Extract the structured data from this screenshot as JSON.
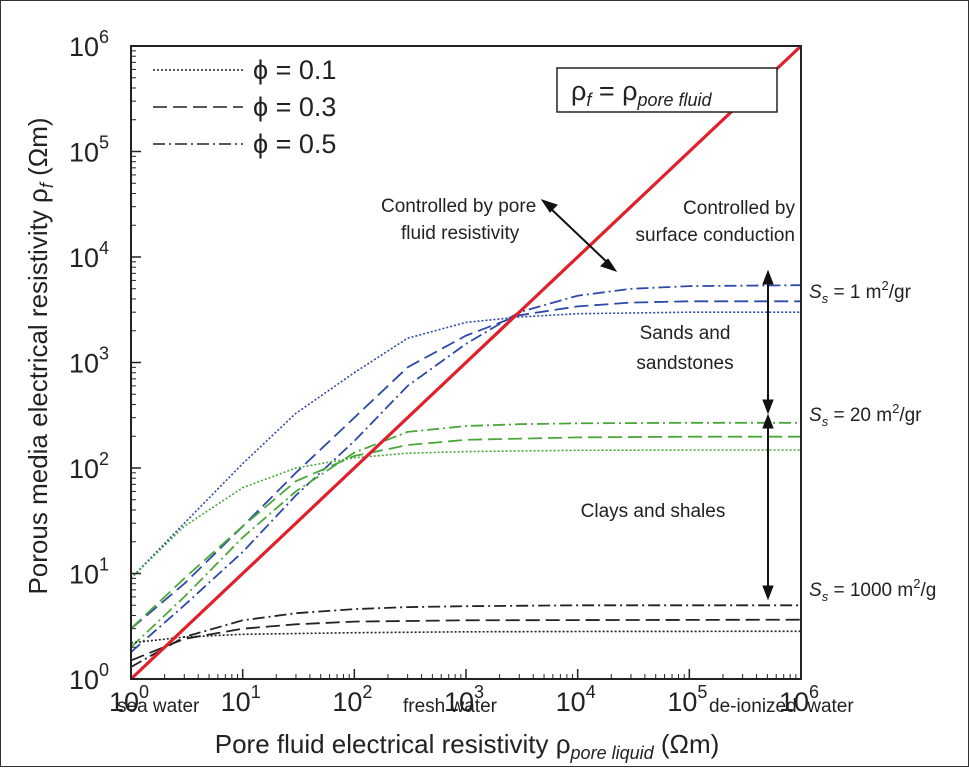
{
  "chart_data": {
    "type": "line",
    "x_scale": "log",
    "y_scale": "log",
    "xlim": [
      1,
      1000000
    ],
    "ylim": [
      1,
      1000000
    ],
    "grid": false,
    "xlabel": "Pore fluid electrical resistivity",
    "xlabel_symbol": "ρ",
    "xlabel_sub": "pore liquid",
    "xlabel_unit": "(Ωm)",
    "ylabel": "Porous media electrical resistivity",
    "ylabel_symbol": "ρ",
    "ylabel_sub": "f",
    "ylabel_unit": "(Ωm)",
    "tick_base": "10",
    "tick_exponents": [
      "0",
      "1",
      "2",
      "3",
      "4",
      "5",
      "6"
    ],
    "x_category_labels": [
      {
        "x": 1,
        "label": "sea water"
      },
      {
        "x": 300,
        "label": "fresh water"
      },
      {
        "x": 100000,
        "label": "de-ionized  water"
      }
    ],
    "legend": {
      "placement": "top-left",
      "entries": [
        {
          "symbol": "ϕ = 0.1",
          "style": "dotted"
        },
        {
          "symbol": "ϕ = 0.3",
          "style": "dashed"
        },
        {
          "symbol": "ϕ = 0.5",
          "style": "dash-dot"
        }
      ]
    },
    "identity_box": {
      "lhs": "ρ",
      "lhs_sub": "f",
      "eq": " = ",
      "rhs": "ρ",
      "rhs_sub": "pore fluid"
    },
    "identity_line": {
      "x": [
        1,
        1000000
      ],
      "y": [
        1,
        1000000
      ],
      "color": "#e0202a"
    },
    "annotations": {
      "pore_fluid": [
        "Controlled by pore",
        "fluid resistivity"
      ],
      "surface": [
        "Controlled by",
        "surface conduction"
      ],
      "sands": [
        "Sands and",
        "sandstones"
      ],
      "clays": "Clays and shales"
    },
    "surface_area_labels": [
      {
        "prefix": "S",
        "sub": "s",
        "value": " = 1 m",
        "sup": "2",
        "unit": "/gr",
        "y": 3800
      },
      {
        "prefix": "S",
        "sub": "s",
        "value": " = 20 m",
        "sup": "2",
        "unit": "/gr",
        "y": 200
      },
      {
        "prefix": "S",
        "sub": "s",
        "value": " = 1000 m",
        "sup": "2",
        "unit": "/g",
        "y": 3.5
      }
    ],
    "colors": {
      "blue": "#2e49a8",
      "green": "#4aa83a",
      "black": "#222222",
      "red": "#e0202a"
    },
    "series": [
      {
        "group": "Ss=1",
        "phi": 0.1,
        "style": "dotted",
        "color": "#2e49a8",
        "x": [
          1,
          3,
          10,
          30,
          100,
          300,
          1000,
          3000,
          10000,
          100000,
          1000000
        ],
        "y": [
          9,
          30,
          110,
          330,
          800,
          1700,
          2400,
          2700,
          2900,
          3000,
          3000
        ]
      },
      {
        "group": "Ss=1",
        "phi": 0.3,
        "style": "dashed",
        "color": "#2e49a8",
        "x": [
          1,
          3,
          10,
          30,
          100,
          300,
          1000,
          3000,
          10000,
          30000,
          100000,
          1000000
        ],
        "y": [
          3,
          8,
          28,
          90,
          300,
          900,
          1800,
          2800,
          3400,
          3700,
          3800,
          3800
        ]
      },
      {
        "group": "Ss=1",
        "phi": 0.5,
        "style": "dash-dot",
        "color": "#2e49a8",
        "x": [
          1,
          3,
          10,
          30,
          100,
          300,
          1000,
          3000,
          10000,
          30000,
          100000,
          1000000
        ],
        "y": [
          1.8,
          5,
          16,
          55,
          180,
          600,
          1500,
          3000,
          4300,
          5000,
          5300,
          5400
        ]
      },
      {
        "group": "Ss=20",
        "phi": 0.1,
        "style": "dotted",
        "color": "#4aa83a",
        "x": [
          1,
          3,
          10,
          30,
          100,
          300,
          1000,
          10000,
          100000,
          1000000
        ],
        "y": [
          9,
          28,
          65,
          100,
          125,
          138,
          143,
          147,
          148,
          148
        ]
      },
      {
        "group": "Ss=20",
        "phi": 0.3,
        "style": "dashed",
        "color": "#4aa83a",
        "x": [
          1,
          3,
          10,
          30,
          100,
          300,
          1000,
          10000,
          100000,
          1000000
        ],
        "y": [
          3,
          9,
          28,
          75,
          130,
          165,
          185,
          195,
          198,
          198
        ]
      },
      {
        "group": "Ss=20",
        "phi": 0.5,
        "style": "dash-dot",
        "color": "#4aa83a",
        "x": [
          1,
          3,
          10,
          30,
          100,
          300,
          1000,
          3000,
          10000,
          100000,
          1000000
        ],
        "y": [
          2,
          6,
          22,
          60,
          140,
          220,
          250,
          260,
          265,
          268,
          268
        ]
      },
      {
        "group": "Ss=1000",
        "phi": 0.1,
        "style": "dotted",
        "color": "#222222",
        "x": [
          1,
          3,
          10,
          100,
          1000,
          10000,
          1000000
        ],
        "y": [
          2.2,
          2.5,
          2.65,
          2.75,
          2.8,
          2.82,
          2.83
        ]
      },
      {
        "group": "Ss=1000",
        "phi": 0.3,
        "style": "dashed",
        "color": "#222222",
        "x": [
          1,
          3,
          10,
          30,
          100,
          1000,
          10000,
          1000000
        ],
        "y": [
          1.5,
          2.4,
          3.0,
          3.3,
          3.5,
          3.6,
          3.62,
          3.65
        ]
      },
      {
        "group": "Ss=1000",
        "phi": 0.5,
        "style": "dash-dot",
        "color": "#222222",
        "x": [
          1,
          3,
          10,
          30,
          100,
          300,
          1000,
          10000,
          1000000
        ],
        "y": [
          1.3,
          2.5,
          3.6,
          4.2,
          4.6,
          4.8,
          4.9,
          5.0,
          5.0
        ]
      }
    ]
  }
}
